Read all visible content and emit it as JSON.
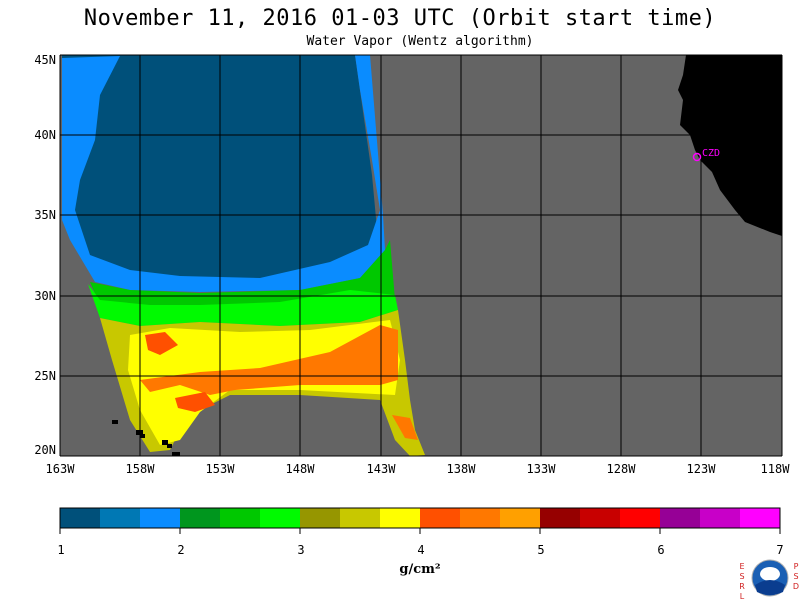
{
  "title": "November 11, 2016  01-03 UTC  (Orbit start time)",
  "subtitle": "Water Vapor (Wentz algorithm)",
  "lat_labels": [
    "45N",
    "40N",
    "35N",
    "30N",
    "25N",
    "20N"
  ],
  "lon_labels": [
    "163W",
    "158W",
    "153W",
    "148W",
    "143W",
    "138W",
    "133W",
    "128W",
    "123W",
    "118W"
  ],
  "station_label": "CZD",
  "colorbar": {
    "colors": [
      "#00507a",
      "#0078b4",
      "#0a8cff",
      "#00961e",
      "#00c800",
      "#00fa00",
      "#969600",
      "#c8c800",
      "#ffff00",
      "#ff5000",
      "#ff7800",
      "#ffa000",
      "#960000",
      "#c80000",
      "#ff0000",
      "#960096",
      "#c800c8",
      "#ff00ff"
    ],
    "tick_labels": [
      "1",
      "2",
      "3",
      "4",
      "5",
      "6",
      "7"
    ],
    "units": "g/cm²"
  },
  "logo": {
    "left_letters": "ESRL",
    "right_letters": "PSD",
    "name": "NOAA"
  },
  "colors": {
    "ocean_no_data": "#646464",
    "land": "#000000",
    "station": "#ff00ff",
    "grid": "#000000"
  }
}
